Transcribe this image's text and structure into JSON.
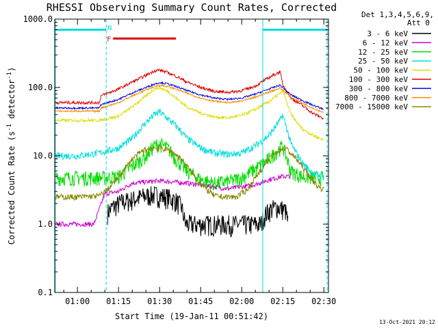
{
  "chart_data": {
    "type": "line",
    "title": "RHESSI Observing Summary Count Rates, Corrected",
    "xlabel": "Start Time (19-Jan-11 00:51:42)",
    "ylabel_pre": "Corrected Count Rate (s",
    "ylabel_sup1": "-1",
    "ylabel_mid": " detector",
    "ylabel_sup2": "-1",
    "ylabel_post": ")",
    "yscale": "log",
    "ylim": [
      0.1,
      1000
    ],
    "xlim_minutes": [
      51.7,
      151.7
    ],
    "y_ticks": [
      {
        "value": 1000,
        "label": "1000.0"
      },
      {
        "value": 100,
        "label": "100.0"
      },
      {
        "value": 10,
        "label": "10.0"
      },
      {
        "value": 1,
        "label": "1.0"
      },
      {
        "value": 0.1,
        "label": "0.1"
      }
    ],
    "x_ticks": [
      {
        "minute": 60,
        "label": "01:00"
      },
      {
        "minute": 75,
        "label": "01:15"
      },
      {
        "minute": 90,
        "label": "01:30"
      },
      {
        "minute": 105,
        "label": "01:45"
      },
      {
        "minute": 120,
        "label": "02:00"
      },
      {
        "minute": 135,
        "label": "02:15"
      },
      {
        "minute": 150,
        "label": "02:30"
      }
    ],
    "legend_header": [
      "Det 1,3,4,5,6,9,",
      "Att 0"
    ],
    "series": [
      {
        "name": "3 - 6 keV",
        "color": "#000000",
        "x": [
          71,
          73,
          76,
          80,
          85,
          88,
          93,
          96,
          98,
          99.5,
          127,
          128,
          130,
          133,
          136,
          137
        ],
        "y": [
          1.5,
          1.8,
          2.1,
          2.3,
          2.6,
          2.7,
          2.5,
          2.2,
          1.8,
          1.0,
          1.0,
          1.3,
          1.6,
          1.8,
          1.6,
          1.0
        ]
      },
      {
        "name": "6 - 12 keV",
        "color": "#cc00cc",
        "x": [
          52,
          56,
          58,
          63,
          66,
          70,
          75,
          80,
          90,
          100,
          110,
          115,
          120,
          125,
          130,
          135,
          138
        ],
        "y": [
          1.0,
          1.0,
          1.0,
          1.0,
          1.0,
          2.8,
          3.0,
          4.0,
          4.3,
          4.0,
          3.5,
          3.3,
          3.5,
          3.8,
          4.5,
          5.0,
          5.0
        ]
      },
      {
        "name": "12 - 25 keV",
        "color": "#00dd00",
        "x": [
          52,
          60,
          70,
          75,
          80,
          85,
          88,
          90,
          93,
          96,
          100,
          105,
          110,
          115,
          120,
          125,
          130,
          133,
          135,
          138,
          142,
          146,
          150
        ],
        "y": [
          4.8,
          4.8,
          4.8,
          5.0,
          7.0,
          10.0,
          14.0,
          15.0,
          13.0,
          9.0,
          6.0,
          4.5,
          4.0,
          4.2,
          4.8,
          6.5,
          9.0,
          12.0,
          14.0,
          6.0,
          5.0,
          4.8,
          4.8
        ]
      },
      {
        "name": "25 - 50 keV",
        "color": "#00dddd",
        "x": [
          52,
          60,
          68,
          75,
          80,
          84,
          88,
          90,
          93,
          97,
          100,
          105,
          110,
          115,
          120,
          125,
          130,
          134,
          135,
          138,
          142,
          146,
          150
        ],
        "y": [
          10,
          10,
          11,
          13,
          18,
          28,
          40,
          44,
          35,
          25,
          18,
          13,
          11,
          10.5,
          11,
          14,
          20,
          33,
          40,
          15,
          8,
          5.5,
          5
        ]
      },
      {
        "name": "50 - 100 keV",
        "color": "#dddd00",
        "x": [
          52,
          60,
          68,
          75,
          80,
          85,
          88,
          90,
          93,
          97,
          100,
          105,
          110,
          115,
          120,
          125,
          130,
          134,
          135,
          138,
          142,
          146,
          150
        ],
        "y": [
          33,
          33,
          33,
          38,
          52,
          75,
          95,
          100,
          88,
          65,
          52,
          42,
          37,
          36,
          39,
          48,
          62,
          82,
          90,
          40,
          25,
          20,
          17
        ]
      },
      {
        "name": "100 - 300 keV",
        "color": "#dd0000",
        "x": [
          52,
          58,
          68,
          68.5,
          75,
          80,
          85,
          88,
          90,
          93,
          97,
          100,
          105,
          110,
          115,
          120,
          125,
          130,
          134,
          135,
          138,
          142,
          146,
          150
        ],
        "y": [
          60,
          60,
          60,
          75,
          95,
          120,
          150,
          175,
          180,
          165,
          140,
          120,
          100,
          88,
          85,
          90,
          105,
          140,
          170,
          110,
          70,
          55,
          42,
          35
        ]
      },
      {
        "name": "300 - 800 keV",
        "color": "#0000dd",
        "x": [
          52,
          58,
          68,
          68.5,
          75,
          80,
          85,
          88,
          90,
          93,
          97,
          100,
          105,
          110,
          115,
          120,
          125,
          130,
          134,
          135,
          138,
          142,
          146,
          150
        ],
        "y": [
          50,
          50,
          50,
          56,
          67,
          83,
          100,
          112,
          118,
          113,
          100,
          90,
          78,
          70,
          67,
          70,
          80,
          95,
          108,
          100,
          78,
          65,
          55,
          48
        ]
      },
      {
        "name": "800 - 7000 keV",
        "color": "#ff8800",
        "x": [
          52,
          58,
          68,
          68.5,
          75,
          80,
          85,
          88,
          90,
          93,
          97,
          100,
          105,
          110,
          115,
          120,
          125,
          130,
          134,
          135,
          138,
          142,
          146,
          150
        ],
        "y": [
          45,
          45,
          45,
          50,
          60,
          75,
          92,
          103,
          108,
          103,
          92,
          82,
          70,
          63,
          60,
          63,
          72,
          86,
          98,
          92,
          72,
          60,
          50,
          43
        ]
      },
      {
        "name": "7000 - 15000 keV",
        "color": "#888800",
        "x": [
          52,
          60,
          68,
          72,
          76,
          80,
          84,
          88,
          90,
          94,
          98,
          102,
          106,
          110,
          114,
          118,
          122,
          126,
          130,
          134,
          136,
          140,
          144,
          148,
          150
        ],
        "y": [
          2.5,
          2.5,
          2.6,
          3.5,
          5.5,
          9.0,
          12.0,
          13.0,
          13.0,
          12.0,
          9.0,
          5.5,
          3.5,
          2.6,
          2.5,
          2.5,
          3.2,
          5.5,
          9.0,
          12.5,
          13.0,
          9.0,
          5.5,
          3.5,
          3.2
        ]
      }
    ],
    "segments": [
      {
        "label": "",
        "color": "#00dddd",
        "y": 700,
        "x1": 51.7,
        "x2": 70.5
      },
      {
        "label": "",
        "color": "#00dddd",
        "y": 700,
        "x1": 127.7,
        "x2": 151.2
      },
      {
        "label": "F",
        "color": "#dd0000",
        "y": 520,
        "x1": 73.0,
        "x2": 96.0
      }
    ],
    "markers": [
      {
        "label": "N",
        "color": "#00dddd",
        "x": 70.5,
        "y": 760
      }
    ],
    "vlines": [
      {
        "x": 51.9,
        "color": "#00dddd",
        "style": "solid"
      },
      {
        "x": 70.5,
        "color": "#00dddd",
        "style": "dashed"
      },
      {
        "x": 127.7,
        "color": "#00dddd",
        "style": "solid"
      },
      {
        "x": 151.2,
        "color": "#00dddd",
        "style": "dashed"
      }
    ]
  },
  "footer": "13-Oct-2021 20:12"
}
